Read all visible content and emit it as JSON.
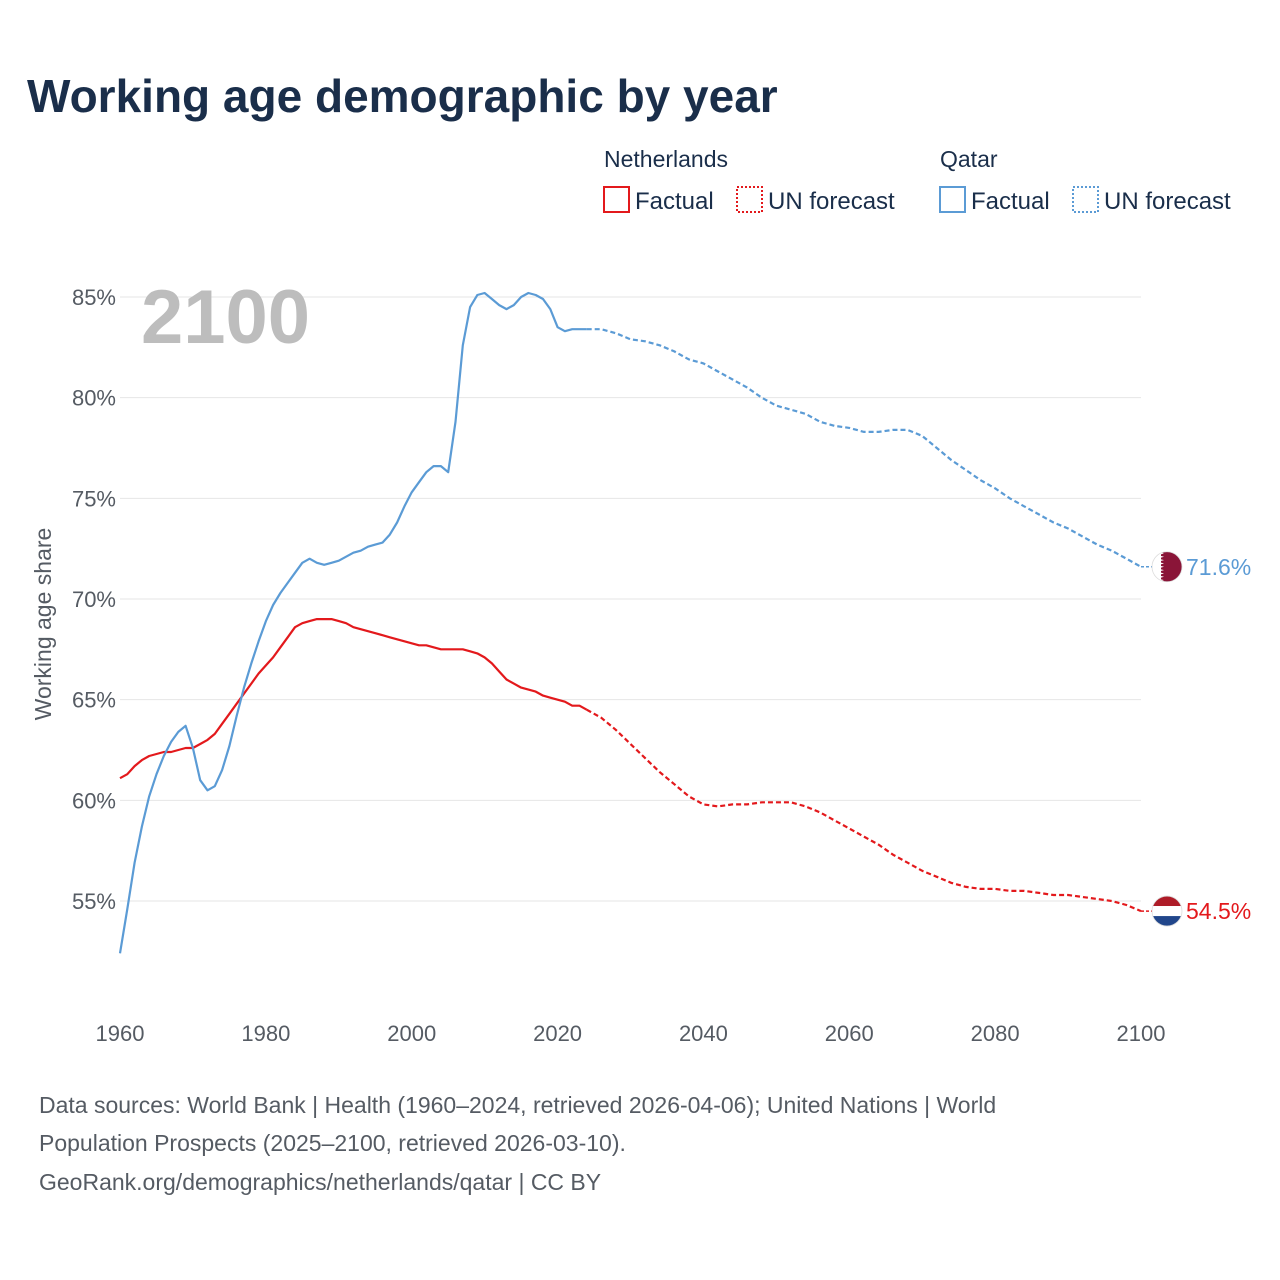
{
  "chart_data": {
    "type": "line",
    "title": "Working age demographic by year",
    "ylabel": "Working age share",
    "xlabel": "",
    "xlim": [
      1960,
      2100
    ],
    "ylim": [
      51,
      87
    ],
    "year_label": "2100",
    "x_ticks": [
      1960,
      1980,
      2000,
      2020,
      2040,
      2060,
      2080,
      2100
    ],
    "x_tick_labels": [
      "1960",
      "1980",
      "2000",
      "2020",
      "2040",
      "2060",
      "2080",
      "2100"
    ],
    "y_ticks": [
      55,
      60,
      65,
      70,
      75,
      80,
      85
    ],
    "y_tick_labels": [
      "55%",
      "60%",
      "65%",
      "70%",
      "75%",
      "80%",
      "85%"
    ],
    "legend_position": "top-right",
    "legend": [
      {
        "country": "Netherlands",
        "items": [
          "Factual",
          "UN forecast"
        ]
      },
      {
        "country": "Qatar",
        "items": [
          "Factual",
          "UN forecast"
        ]
      }
    ],
    "series": [
      {
        "name": "Netherlands",
        "color": "#e3191c",
        "end_label": "54.5%",
        "flag": "netherlands-flag",
        "factual_points": [
          [
            1960,
            61.1
          ],
          [
            1961,
            61.3
          ],
          [
            1962,
            61.7
          ],
          [
            1963,
            62.0
          ],
          [
            1964,
            62.2
          ],
          [
            1965,
            62.3
          ],
          [
            1966,
            62.4
          ],
          [
            1967,
            62.4
          ],
          [
            1968,
            62.5
          ],
          [
            1969,
            62.6
          ],
          [
            1970,
            62.6
          ],
          [
            1971,
            62.8
          ],
          [
            1972,
            63.0
          ],
          [
            1973,
            63.3
          ],
          [
            1974,
            63.8
          ],
          [
            1975,
            64.3
          ],
          [
            1976,
            64.8
          ],
          [
            1977,
            65.3
          ],
          [
            1978,
            65.8
          ],
          [
            1979,
            66.3
          ],
          [
            1980,
            66.7
          ],
          [
            1981,
            67.1
          ],
          [
            1982,
            67.6
          ],
          [
            1983,
            68.1
          ],
          [
            1984,
            68.6
          ],
          [
            1985,
            68.8
          ],
          [
            1986,
            68.9
          ],
          [
            1987,
            69.0
          ],
          [
            1988,
            69.0
          ],
          [
            1989,
            69.0
          ],
          [
            1990,
            68.9
          ],
          [
            1991,
            68.8
          ],
          [
            1992,
            68.6
          ],
          [
            1993,
            68.5
          ],
          [
            1994,
            68.4
          ],
          [
            1995,
            68.3
          ],
          [
            1996,
            68.2
          ],
          [
            1997,
            68.1
          ],
          [
            1998,
            68.0
          ],
          [
            1999,
            67.9
          ],
          [
            2000,
            67.8
          ],
          [
            2001,
            67.7
          ],
          [
            2002,
            67.7
          ],
          [
            2003,
            67.6
          ],
          [
            2004,
            67.5
          ],
          [
            2005,
            67.5
          ],
          [
            2006,
            67.5
          ],
          [
            2007,
            67.5
          ],
          [
            2008,
            67.4
          ],
          [
            2009,
            67.3
          ],
          [
            2010,
            67.1
          ],
          [
            2011,
            66.8
          ],
          [
            2012,
            66.4
          ],
          [
            2013,
            66.0
          ],
          [
            2014,
            65.8
          ],
          [
            2015,
            65.6
          ],
          [
            2016,
            65.5
          ],
          [
            2017,
            65.4
          ],
          [
            2018,
            65.2
          ],
          [
            2019,
            65.1
          ],
          [
            2020,
            65.0
          ],
          [
            2021,
            64.9
          ],
          [
            2022,
            64.7
          ],
          [
            2023,
            64.7
          ],
          [
            2024,
            64.5
          ]
        ],
        "forecast_points": [
          [
            2024,
            64.5
          ],
          [
            2026,
            64.1
          ],
          [
            2028,
            63.5
          ],
          [
            2030,
            62.8
          ],
          [
            2032,
            62.1
          ],
          [
            2034,
            61.4
          ],
          [
            2036,
            60.8
          ],
          [
            2038,
            60.2
          ],
          [
            2040,
            59.8
          ],
          [
            2042,
            59.7
          ],
          [
            2044,
            59.8
          ],
          [
            2046,
            59.8
          ],
          [
            2048,
            59.9
          ],
          [
            2050,
            59.9
          ],
          [
            2052,
            59.9
          ],
          [
            2054,
            59.7
          ],
          [
            2056,
            59.4
          ],
          [
            2058,
            59.0
          ],
          [
            2060,
            58.6
          ],
          [
            2062,
            58.2
          ],
          [
            2064,
            57.8
          ],
          [
            2066,
            57.3
          ],
          [
            2068,
            56.9
          ],
          [
            2070,
            56.5
          ],
          [
            2072,
            56.2
          ],
          [
            2074,
            55.9
          ],
          [
            2076,
            55.7
          ],
          [
            2078,
            55.6
          ],
          [
            2080,
            55.6
          ],
          [
            2082,
            55.5
          ],
          [
            2084,
            55.5
          ],
          [
            2086,
            55.4
          ],
          [
            2088,
            55.3
          ],
          [
            2090,
            55.3
          ],
          [
            2092,
            55.2
          ],
          [
            2094,
            55.1
          ],
          [
            2096,
            55.0
          ],
          [
            2098,
            54.8
          ],
          [
            2100,
            54.5
          ]
        ]
      },
      {
        "name": "Qatar",
        "color": "#5b9bd5",
        "end_label": "71.6%",
        "flag": "qatar-flag",
        "factual_points": [
          [
            1960,
            52.4
          ],
          [
            1961,
            54.6
          ],
          [
            1962,
            56.9
          ],
          [
            1963,
            58.7
          ],
          [
            1964,
            60.2
          ],
          [
            1965,
            61.3
          ],
          [
            1966,
            62.2
          ],
          [
            1967,
            62.9
          ],
          [
            1968,
            63.4
          ],
          [
            1969,
            63.7
          ],
          [
            1970,
            62.6
          ],
          [
            1971,
            61.0
          ],
          [
            1972,
            60.5
          ],
          [
            1973,
            60.7
          ],
          [
            1974,
            61.5
          ],
          [
            1975,
            62.7
          ],
          [
            1976,
            64.2
          ],
          [
            1977,
            65.6
          ],
          [
            1978,
            66.8
          ],
          [
            1979,
            67.9
          ],
          [
            1980,
            68.9
          ],
          [
            1981,
            69.7
          ],
          [
            1982,
            70.3
          ],
          [
            1983,
            70.8
          ],
          [
            1984,
            71.3
          ],
          [
            1985,
            71.8
          ],
          [
            1986,
            72.0
          ],
          [
            1987,
            71.8
          ],
          [
            1988,
            71.7
          ],
          [
            1989,
            71.8
          ],
          [
            1990,
            71.9
          ],
          [
            1991,
            72.1
          ],
          [
            1992,
            72.3
          ],
          [
            1993,
            72.4
          ],
          [
            1994,
            72.6
          ],
          [
            1995,
            72.7
          ],
          [
            1996,
            72.8
          ],
          [
            1997,
            73.2
          ],
          [
            1998,
            73.8
          ],
          [
            1999,
            74.6
          ],
          [
            2000,
            75.3
          ],
          [
            2001,
            75.8
          ],
          [
            2002,
            76.3
          ],
          [
            2003,
            76.6
          ],
          [
            2004,
            76.6
          ],
          [
            2005,
            76.3
          ],
          [
            2006,
            78.8
          ],
          [
            2007,
            82.6
          ],
          [
            2008,
            84.5
          ],
          [
            2009,
            85.1
          ],
          [
            2010,
            85.2
          ],
          [
            2011,
            84.9
          ],
          [
            2012,
            84.6
          ],
          [
            2013,
            84.4
          ],
          [
            2014,
            84.6
          ],
          [
            2015,
            85.0
          ],
          [
            2016,
            85.2
          ],
          [
            2017,
            85.1
          ],
          [
            2018,
            84.9
          ],
          [
            2019,
            84.4
          ],
          [
            2020,
            83.5
          ],
          [
            2021,
            83.3
          ],
          [
            2022,
            83.4
          ],
          [
            2023,
            83.4
          ],
          [
            2024,
            83.4
          ]
        ],
        "forecast_points": [
          [
            2024,
            83.4
          ],
          [
            2026,
            83.4
          ],
          [
            2028,
            83.2
          ],
          [
            2030,
            82.9
          ],
          [
            2032,
            82.8
          ],
          [
            2034,
            82.6
          ],
          [
            2036,
            82.3
          ],
          [
            2038,
            81.9
          ],
          [
            2040,
            81.7
          ],
          [
            2042,
            81.3
          ],
          [
            2044,
            80.9
          ],
          [
            2046,
            80.5
          ],
          [
            2048,
            80.0
          ],
          [
            2050,
            79.6
          ],
          [
            2052,
            79.4
          ],
          [
            2054,
            79.2
          ],
          [
            2056,
            78.8
          ],
          [
            2058,
            78.6
          ],
          [
            2060,
            78.5
          ],
          [
            2062,
            78.3
          ],
          [
            2064,
            78.3
          ],
          [
            2066,
            78.4
          ],
          [
            2068,
            78.4
          ],
          [
            2070,
            78.1
          ],
          [
            2072,
            77.5
          ],
          [
            2074,
            76.9
          ],
          [
            2076,
            76.4
          ],
          [
            2078,
            75.9
          ],
          [
            2080,
            75.5
          ],
          [
            2082,
            75.0
          ],
          [
            2084,
            74.6
          ],
          [
            2086,
            74.2
          ],
          [
            2088,
            73.8
          ],
          [
            2090,
            73.5
          ],
          [
            2092,
            73.1
          ],
          [
            2094,
            72.7
          ],
          [
            2096,
            72.4
          ],
          [
            2098,
            72.0
          ],
          [
            2100,
            71.6
          ]
        ]
      }
    ]
  },
  "footer": {
    "line1": "Data sources: World Bank | Health (1960–2024, retrieved 2026-04-06); United Nations | World",
    "line2": "Population Prospects (2025–2100, retrieved 2026-03-10).",
    "line3": "GeoRank.org/demographics/netherlands/qatar | CC BY"
  }
}
